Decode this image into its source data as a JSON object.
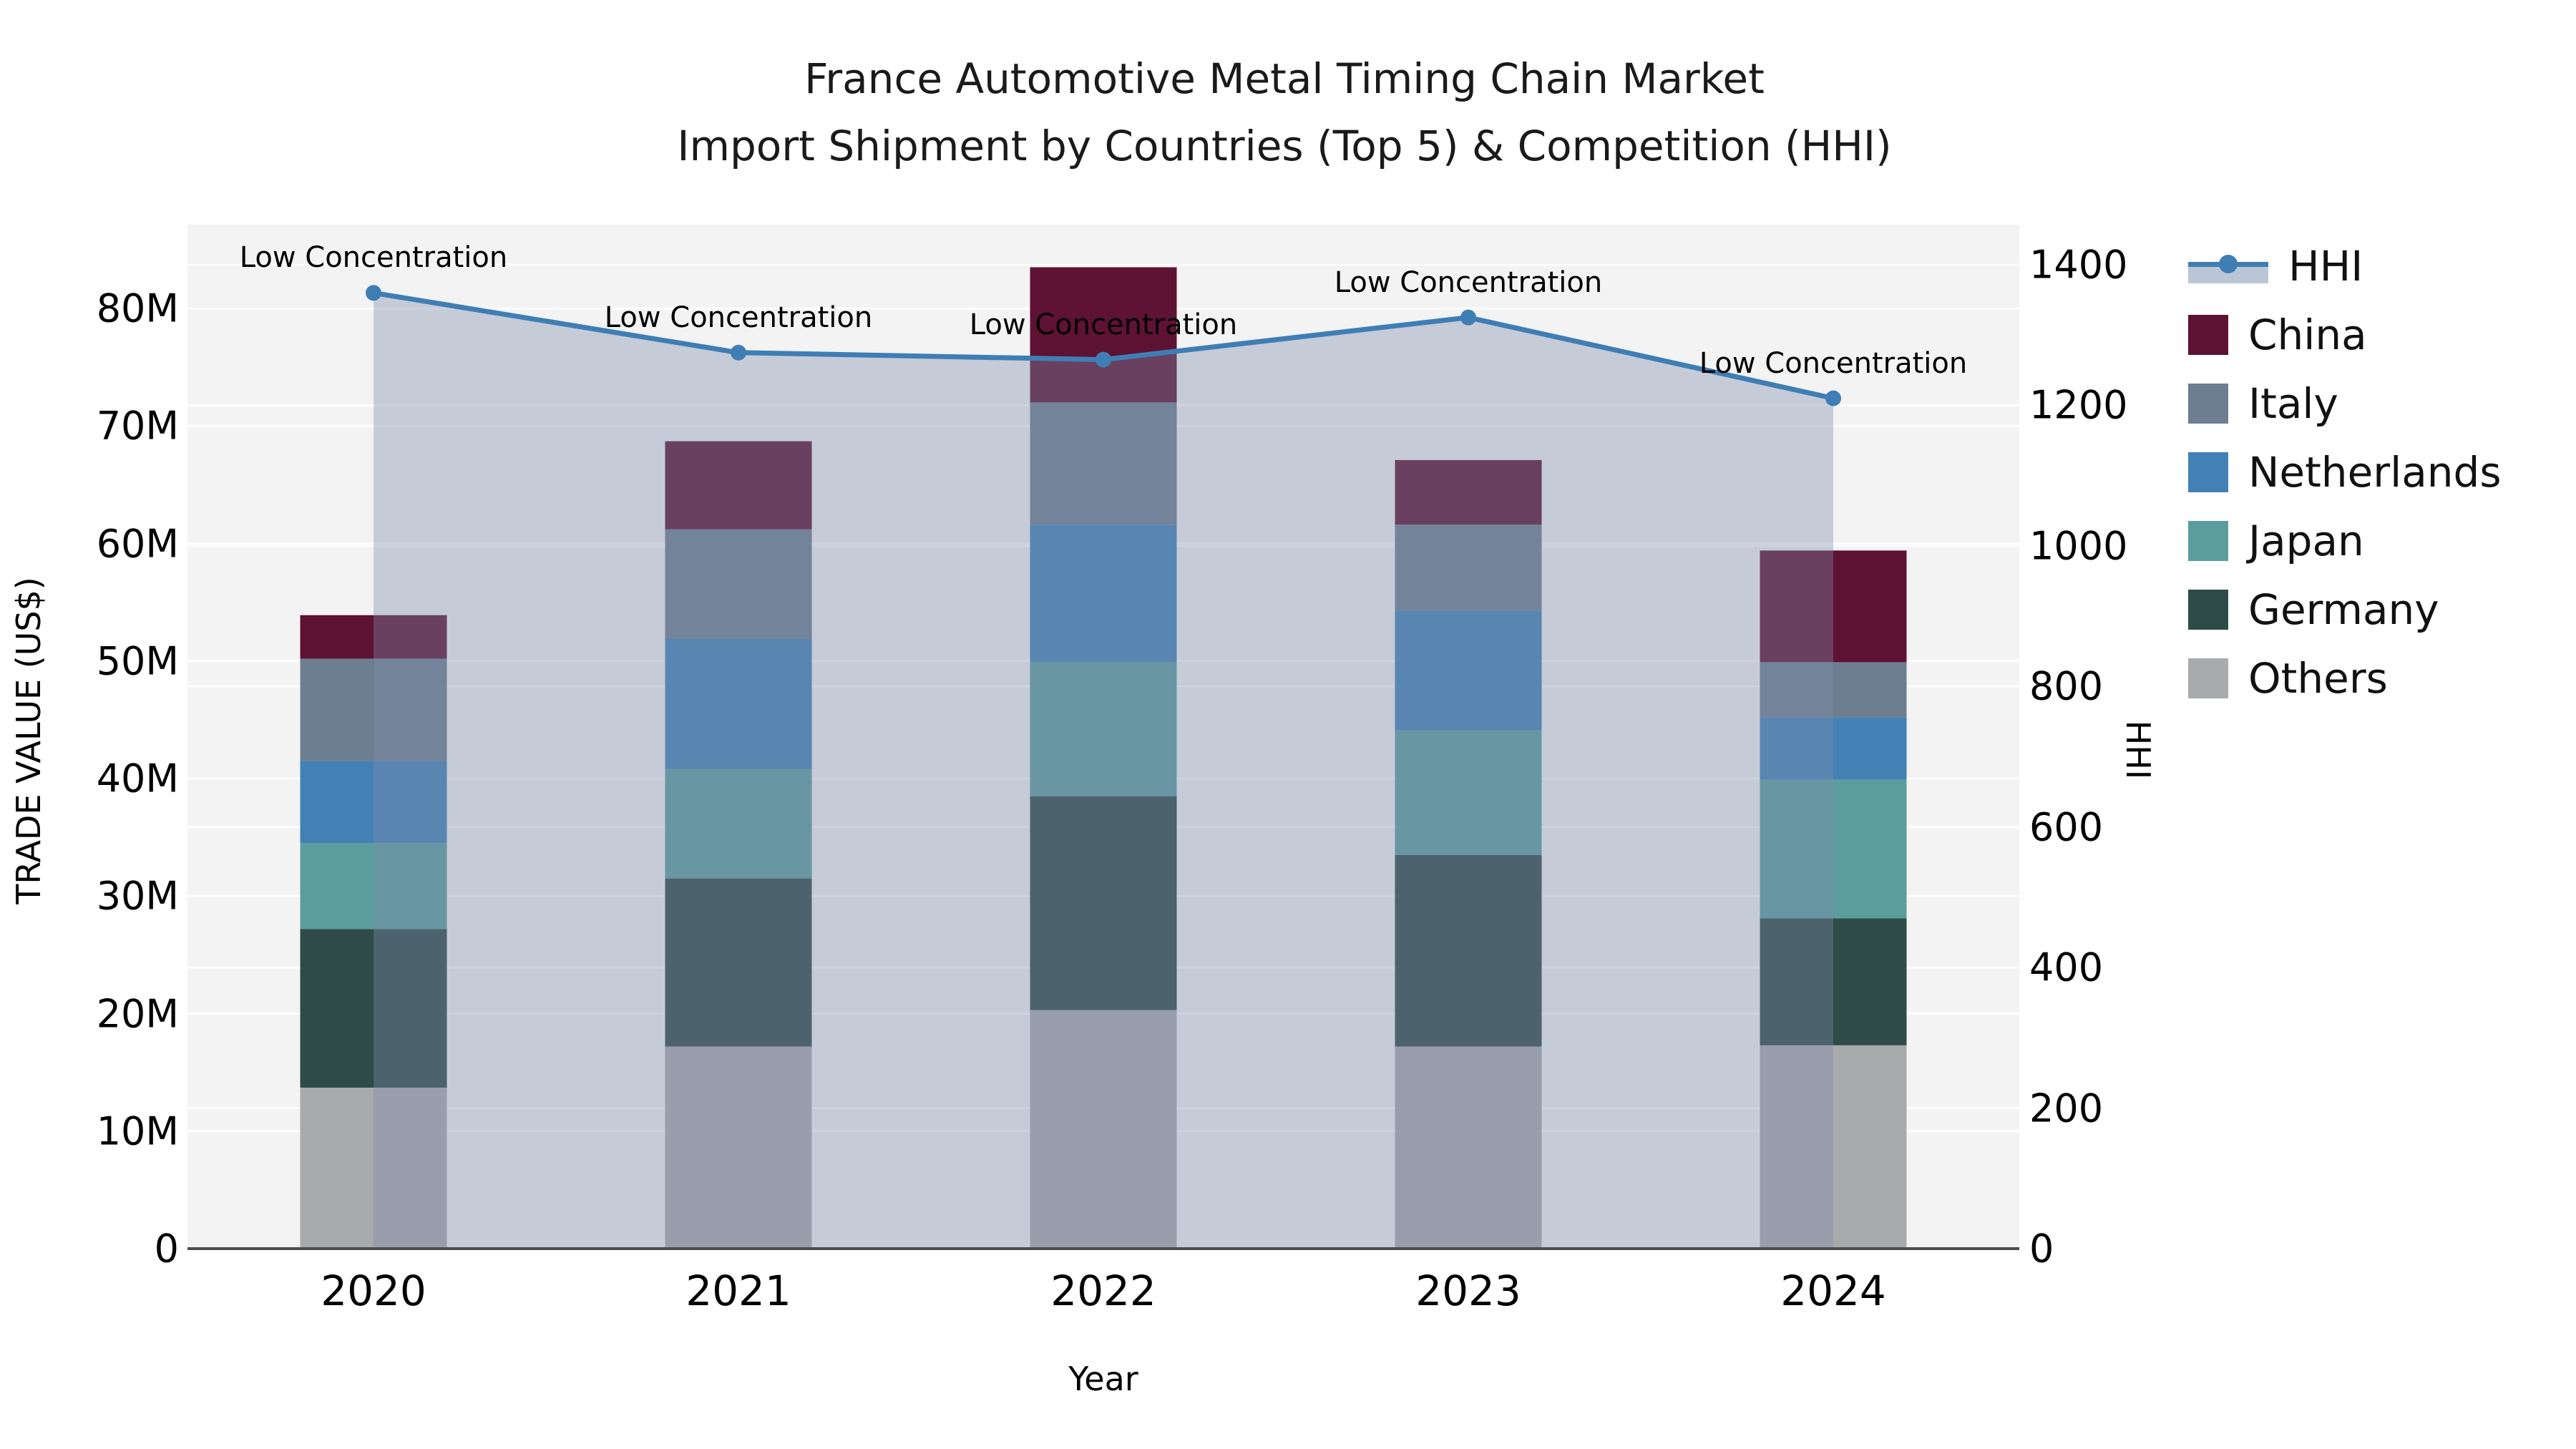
{
  "chart_data": {
    "type": "bar+line",
    "title": "France Automotive Metal Timing Chain Market",
    "subtitle": "Import Shipment by Countries (Top 5) & Competition (HHI)",
    "xlabel": "Year",
    "ylabel_left": "TRADE VALUE (US$)",
    "ylabel_right": "HHI",
    "categories": [
      "2020",
      "2021",
      "2022",
      "2023",
      "2024"
    ],
    "bar_unit": "US$ millions",
    "stack_order_bottom_to_top": [
      "Others",
      "Germany",
      "Japan",
      "Netherlands",
      "Italy",
      "China"
    ],
    "series": [
      {
        "name": "Others",
        "color": "#a8aaac",
        "values": [
          13.7,
          17.2,
          20.3,
          17.2,
          17.3
        ]
      },
      {
        "name": "Germany",
        "color": "#2e4b48",
        "values": [
          13.5,
          14.3,
          18.2,
          16.3,
          10.8
        ]
      },
      {
        "name": "Japan",
        "color": "#5b9d9d",
        "values": [
          7.3,
          9.3,
          11.4,
          10.6,
          11.8
        ]
      },
      {
        "name": "Netherlands",
        "color": "#4381b5",
        "values": [
          7.0,
          11.1,
          11.7,
          10.2,
          5.3
        ]
      },
      {
        "name": "Italy",
        "color": "#6c7e8f",
        "values": [
          8.7,
          9.3,
          10.4,
          7.3,
          4.7
        ]
      },
      {
        "name": "China",
        "color": "#5e1234",
        "values": [
          3.7,
          7.5,
          11.5,
          5.5,
          9.5
        ]
      }
    ],
    "line_series": {
      "name": "HHI",
      "axis": "right",
      "color": "#3f7eb4",
      "marker": "circle",
      "area_fill": "rgba(125,140,170,0.38)",
      "values": [
        1360,
        1275,
        1265,
        1325,
        1210
      ]
    },
    "annotations": [
      {
        "text": "Low Concentration",
        "category": "2020"
      },
      {
        "text": "Low Concentration",
        "category": "2021"
      },
      {
        "text": "Low Concentration",
        "category": "2022"
      },
      {
        "text": "Low Concentration",
        "category": "2023"
      },
      {
        "text": "Low Concentration",
        "category": "2024"
      }
    ],
    "axis_left": {
      "tick_values": [
        0,
        10,
        20,
        30,
        40,
        50,
        60,
        70,
        80
      ],
      "tick_labels": [
        "0",
        "10M",
        "20M",
        "30M",
        "40M",
        "50M",
        "60M",
        "70M",
        "80M"
      ],
      "range_max": 87,
      "grid": true
    },
    "axis_right": {
      "tick_values": [
        0,
        200,
        400,
        600,
        800,
        1000,
        1200,
        1400
      ],
      "tick_labels": [
        "0",
        "200",
        "400",
        "600",
        "800",
        "1000",
        "1200",
        "1400"
      ],
      "range_max": 1400,
      "grid": true
    },
    "legend": {
      "entries": [
        "HHI",
        "China",
        "Italy",
        "Netherlands",
        "Japan",
        "Germany",
        "Others"
      ],
      "position": "right"
    },
    "plot_bg_color": "#f3f3f4",
    "grid_color": "#ffffff",
    "axis_line_color": "#4d4d4d"
  }
}
